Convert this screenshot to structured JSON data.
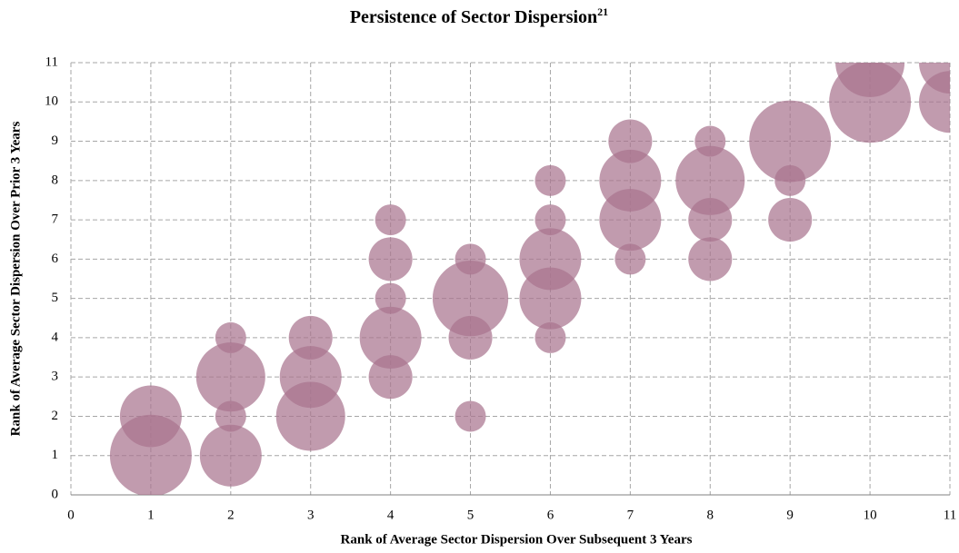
{
  "chart_data": {
    "type": "bubble",
    "title": "Persistence of Sector Dispersion",
    "title_footnote": "21",
    "x_label": "Rank of Average Sector Dispersion Over Subsequent 3 Years",
    "y_label": "Rank of Average Sector Dispersion Over Prior 3 Years",
    "xlim": [
      0,
      11
    ],
    "ylim": [
      0,
      11
    ],
    "xticks": [
      0,
      1,
      2,
      3,
      4,
      5,
      6,
      7,
      8,
      9,
      10,
      11
    ],
    "yticks": [
      0,
      1,
      2,
      3,
      4,
      5,
      6,
      7,
      8,
      9,
      10,
      11
    ],
    "grid": true,
    "series": [
      {
        "color": "#a9758f",
        "x": [
          1,
          1,
          2,
          2,
          2,
          2,
          3,
          3,
          3,
          4,
          4,
          4,
          4,
          4,
          5,
          5,
          5,
          5,
          6,
          6,
          6,
          6,
          6,
          7,
          7,
          7,
          7,
          8,
          8,
          8,
          8,
          9,
          9,
          9,
          10,
          10,
          11,
          11
        ],
        "y": [
          2,
          1,
          4,
          3,
          2,
          1,
          4,
          3,
          2,
          7,
          6,
          5,
          4,
          3,
          6,
          5,
          4,
          2,
          8,
          7,
          6,
          5,
          4,
          9,
          8,
          7,
          6,
          9,
          8,
          7,
          6,
          9,
          8,
          7,
          11,
          10,
          11,
          10
        ],
        "sizes": [
          4,
          7,
          1,
          5,
          1,
          4,
          2,
          4,
          5,
          1,
          2,
          1,
          4,
          2,
          1,
          6,
          2,
          1,
          1,
          1,
          4,
          4,
          1,
          2,
          4,
          4,
          1,
          1,
          5,
          2,
          2,
          7,
          1,
          2,
          5,
          7,
          4,
          4
        ]
      }
    ]
  }
}
